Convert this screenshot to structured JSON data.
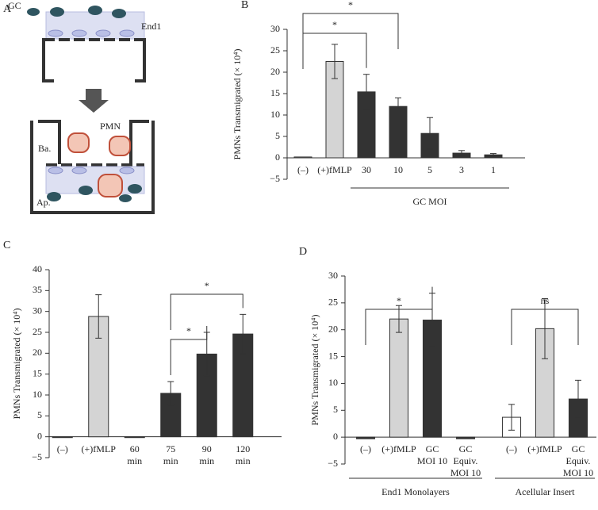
{
  "diagram": {
    "panel": "A",
    "labels": [
      "GC",
      "End1",
      "Ba.",
      "PMN",
      "Ap."
    ]
  },
  "chart_data": [
    {
      "type": "bar",
      "panel": "B",
      "ylabel": "PMNs Transmigrated (× 10⁴)",
      "categories": [
        "(–)",
        "(+)fMLP",
        "30",
        "10",
        "5",
        "3",
        "1"
      ],
      "values": [
        0.2,
        22.5,
        15.4,
        12,
        5.7,
        1.1,
        0.7
      ],
      "errors": [
        null,
        4,
        4.1,
        2,
        3.7,
        0.6,
        0.3
      ],
      "colors": [
        "#ffffff",
        "#d4d4d4",
        "#333333",
        "#333333",
        "#333333",
        "#333333",
        "#333333"
      ],
      "ylim": [
        -5,
        30
      ],
      "yticks": [
        {
          "value": -5,
          "label": "−5"
        },
        0,
        5,
        10,
        15,
        20,
        25,
        30
      ],
      "significance": [
        {
          "from": 0,
          "to": 2,
          "label": "*"
        },
        {
          "from": 0,
          "to": 3,
          "label": "*"
        }
      ],
      "groups": [
        {
          "label": "GC MOI",
          "from": 2,
          "to": 6
        }
      ]
    },
    {
      "type": "bar",
      "panel": "C",
      "ylabel": "PMNs Transmigrated (× 10⁴)",
      "categories": [
        "(–)",
        "(+)fMLP",
        "60\nmin",
        "75\nmin",
        "90\nmin",
        "120\nmin"
      ],
      "values": [
        -0.2,
        28.8,
        -0.2,
        10.4,
        19.8,
        24.6
      ],
      "errors": [
        null,
        5.2,
        null,
        2.8,
        5.2,
        4.7
      ],
      "colors": [
        "#333333",
        "#d4d4d4",
        "#333333",
        "#333333",
        "#333333",
        "#333333"
      ],
      "ylim": [
        -5,
        40
      ],
      "yticks": [
        {
          "value": -5,
          "label": "−5"
        },
        0,
        5,
        10,
        15,
        20,
        25,
        30,
        35,
        40
      ],
      "significance": [
        {
          "from": 3,
          "to": 4,
          "label": "*"
        },
        {
          "from": 3,
          "to": 5,
          "label": "*"
        }
      ],
      "groups": []
    },
    {
      "type": "bar",
      "panel": "D",
      "ylabel": "PMNs Transmigrated (× 10⁴)",
      "categories": [
        "(–)",
        "(+)fMLP",
        "GC\nMOI 10",
        "GC\nEquiv.\nMOI 10",
        "(–)",
        "(+)fMLP",
        "GC\nEquiv.\nMOI 10"
      ],
      "values": [
        -0.3,
        22,
        21.8,
        -0.3,
        3.7,
        20.2,
        7.1
      ],
      "errors": [
        null,
        2.5,
        5,
        null,
        2.4,
        5.6,
        3.5
      ],
      "colors": [
        "#333333",
        "#d4d4d4",
        "#333333",
        "#333333",
        "#ffffff",
        "#d4d4d4",
        "#333333"
      ],
      "ylim": [
        -5,
        30
      ],
      "yticks": [
        {
          "value": -5,
          "label": "−5"
        },
        0,
        5,
        10,
        15,
        20,
        25,
        30
      ],
      "significance": [
        {
          "from": 0,
          "to": 2,
          "label": "*"
        },
        {
          "from": 4,
          "to": 6,
          "label": "ns"
        }
      ],
      "groups": [
        {
          "label": "End1 Monolayers",
          "from": 0,
          "to": 3
        },
        {
          "label": "Acellular Insert",
          "from": 4,
          "to": 6
        }
      ]
    }
  ]
}
